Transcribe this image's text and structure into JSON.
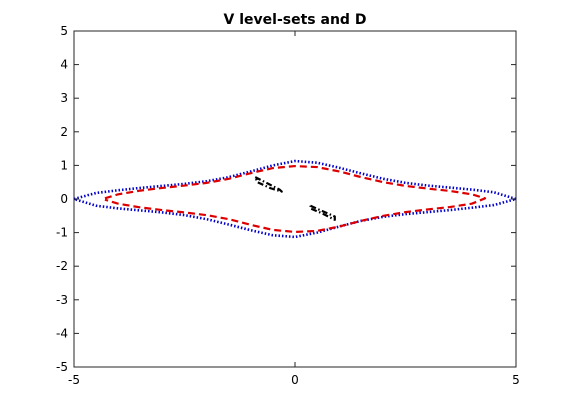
{
  "chart_data": {
    "type": "line",
    "title": "V level-sets and D",
    "xlabel": "",
    "ylabel": "",
    "xlim": [
      -5,
      5
    ],
    "ylim": [
      -5,
      5
    ],
    "xticks": [
      -5,
      0,
      5
    ],
    "yticks": [
      -5,
      -4,
      -3,
      -2,
      -1,
      0,
      1,
      2,
      3,
      4,
      5
    ],
    "grid": false,
    "series": [
      {
        "style": "dotted",
        "color": "#0000cc",
        "x": [
          -5,
          -4.5,
          -4,
          -3.5,
          -3,
          -2.5,
          -2,
          -1.5,
          -1,
          -0.5,
          0,
          0.5,
          1,
          1.5,
          2,
          2.5,
          3,
          3.5,
          4,
          4.5,
          5,
          4.5,
          4,
          3.5,
          3,
          2.5,
          2,
          1.5,
          1,
          0.5,
          0,
          -0.5,
          -1,
          -1.5,
          -2,
          -2.5,
          -3,
          -3.5,
          -4,
          -4.5,
          -5
        ],
        "y": [
          0,
          0.18,
          0.26,
          0.33,
          0.39,
          0.45,
          0.53,
          0.65,
          0.82,
          1.0,
          1.13,
          1.08,
          0.93,
          0.76,
          0.6,
          0.48,
          0.4,
          0.34,
          0.28,
          0.2,
          0,
          -0.18,
          -0.26,
          -0.33,
          -0.39,
          -0.45,
          -0.53,
          -0.65,
          -0.82,
          -1.0,
          -1.13,
          -1.08,
          -0.93,
          -0.76,
          -0.6,
          -0.48,
          -0.4,
          -0.34,
          -0.28,
          -0.2,
          0
        ]
      },
      {
        "style": "dashed",
        "color": "#dd0000",
        "x": [
          -4.3,
          -4,
          -3.5,
          -3,
          -2.5,
          -2,
          -1.5,
          -1,
          -0.5,
          0,
          0.5,
          1,
          1.5,
          2,
          2.5,
          3,
          3.5,
          4,
          4.3,
          4,
          3.5,
          3,
          2.5,
          2,
          1.5,
          1,
          0.5,
          0,
          -0.5,
          -1,
          -1.5,
          -2,
          -2.5,
          -3,
          -3.5,
          -4,
          -4.3
        ],
        "y": [
          0.02,
          0.14,
          0.25,
          0.33,
          0.4,
          0.48,
          0.6,
          0.77,
          0.92,
          0.98,
          0.95,
          0.82,
          0.65,
          0.5,
          0.39,
          0.31,
          0.24,
          0.14,
          0.02,
          -0.14,
          -0.24,
          -0.31,
          -0.39,
          -0.5,
          -0.65,
          -0.82,
          -0.95,
          -0.98,
          -0.92,
          -0.77,
          -0.6,
          -0.48,
          -0.4,
          -0.33,
          -0.25,
          -0.14,
          -0.02
        ]
      },
      {
        "style": "dashdot",
        "color": "#000000",
        "x": [
          -0.9,
          -0.6,
          -0.35,
          -0.3,
          -0.55,
          -0.85,
          -0.9
        ],
        "y": [
          0.65,
          0.45,
          0.28,
          0.22,
          0.32,
          0.5,
          0.65
        ]
      },
      {
        "style": "dashdot",
        "color": "#000000",
        "x": [
          0.35,
          0.6,
          0.9,
          0.9,
          0.6,
          0.35,
          0.35
        ],
        "y": [
          -0.2,
          -0.35,
          -0.52,
          -0.62,
          -0.42,
          -0.28,
          -0.2
        ]
      }
    ]
  }
}
